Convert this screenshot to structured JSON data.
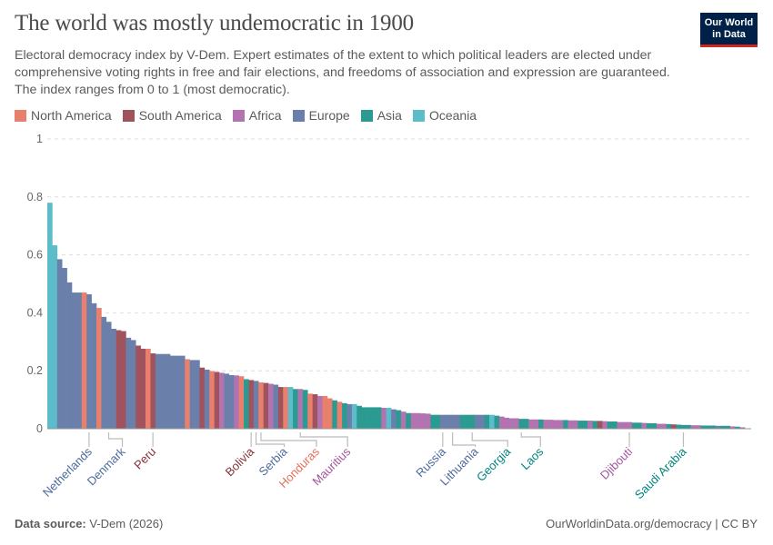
{
  "title": "The world was mostly undemocratic in 1900",
  "subtitle": "Electoral democracy index by V-Dem. Expert estimates of the extent to which political leaders are elected under comprehensive voting rights in free and fair elections, and freedoms of association and expression are guaranteed. The index ranges from 0 to 1 (most democratic).",
  "logo": {
    "line1": "Our World",
    "line2": "in Data"
  },
  "footer": {
    "source_label": "Data source:",
    "source": "V-Dem (2026)",
    "url": "OurWorldinData.org/democracy | CC BY"
  },
  "colors": {
    "North America": {
      "bar": "#e9806d",
      "text": "#e56e5a"
    },
    "South America": {
      "bar": "#a0525d",
      "text": "#883039"
    },
    "Africa": {
      "bar": "#b273b0",
      "text": "#a2559c"
    },
    "Europe": {
      "bar": "#6a80ab",
      "text": "#4c6a9c"
    },
    "Asia": {
      "bar": "#2b9a91",
      "text": "#00847e"
    },
    "Oceania": {
      "bar": "#5cbcc9",
      "text": "#38aaba"
    }
  },
  "chart_data": {
    "type": "bar",
    "title": "The world was mostly undemocratic in 1900",
    "xlabel": "",
    "ylabel": "",
    "ylim": [
      0,
      1
    ],
    "yticks": [
      "0",
      "0.2",
      "0.4",
      "0.6",
      "0.8",
      "1"
    ],
    "grid": true,
    "legend": [
      "North America",
      "South America",
      "Africa",
      "Europe",
      "Asia",
      "Oceania"
    ],
    "legend_placement": "top-left",
    "regions": [
      "Oceania",
      "Oceania",
      "Europe",
      "Europe",
      "Europe",
      "Europe",
      "Europe",
      "North America",
      "Europe",
      "Europe",
      "North America",
      "Europe",
      "Europe",
      "Europe",
      "South America",
      "South America",
      "Europe",
      "Europe",
      "South America",
      "South America",
      "North America",
      "South America",
      "Europe",
      "Europe",
      "Europe",
      "Europe",
      "Europe",
      "Europe",
      "North America",
      "Europe",
      "Europe",
      "South America",
      "Europe",
      "North America",
      "South America",
      "Africa",
      "Europe",
      "Europe",
      "Africa",
      "North America",
      "Asia",
      "South America",
      "Europe",
      "North America",
      "South America",
      "Africa",
      "Europe",
      "South America",
      "North America",
      "Oceania",
      "Asia",
      "Africa",
      "Asia",
      "North America",
      "South America",
      "Africa",
      "North America",
      "North America",
      "Asia",
      "North America",
      "Asia",
      "Europe",
      "Oceania",
      "Asia",
      "Asia",
      "Asia",
      "Asia",
      "Asia",
      "Africa",
      "Oceania",
      "Europe",
      "Asia",
      "Africa",
      "Asia",
      "Africa",
      "Africa",
      "Africa",
      "Africa",
      "Asia",
      "Asia",
      "Europe",
      "Europe",
      "Europe",
      "Europe",
      "Asia",
      "Asia",
      "Asia",
      "Europe",
      "Europe",
      "Asia",
      "Oceania",
      "Asia",
      "Africa",
      "Africa",
      "Africa",
      "Africa",
      "Asia",
      "Asia",
      "Africa",
      "Africa",
      "Asia",
      "Africa",
      "Africa",
      "Africa",
      "Africa",
      "Asia",
      "Africa",
      "Africa",
      "Asia",
      "Asia",
      "Africa",
      "Asia",
      "South America",
      "Africa",
      "Asia",
      "Asia",
      "Africa",
      "Africa",
      "Africa",
      "Asia",
      "Asia",
      "Africa",
      "Asia",
      "Asia",
      "Africa",
      "Africa",
      "Asia",
      "South America",
      "Asia",
      "Asia",
      "Asia",
      "Africa",
      "Africa",
      "Asia",
      "Asia",
      "Asia",
      "Europe",
      "Asia",
      "Asia",
      "Africa",
      "Asia",
      "Africa"
    ],
    "values": [
      0.78,
      0.633,
      0.585,
      0.555,
      0.505,
      0.47,
      0.47,
      0.47,
      0.464,
      0.433,
      0.417,
      0.386,
      0.369,
      0.345,
      0.34,
      0.337,
      0.314,
      0.306,
      0.287,
      0.276,
      0.276,
      0.26,
      0.258,
      0.258,
      0.258,
      0.252,
      0.252,
      0.252,
      0.24,
      0.237,
      0.237,
      0.211,
      0.204,
      0.199,
      0.196,
      0.193,
      0.19,
      0.185,
      0.184,
      0.181,
      0.171,
      0.168,
      0.165,
      0.16,
      0.158,
      0.155,
      0.152,
      0.144,
      0.144,
      0.144,
      0.137,
      0.137,
      0.134,
      0.121,
      0.119,
      0.113,
      0.113,
      0.105,
      0.098,
      0.093,
      0.088,
      0.085,
      0.085,
      0.079,
      0.074,
      0.074,
      0.074,
      0.074,
      0.072,
      0.072,
      0.067,
      0.064,
      0.059,
      0.054,
      0.054,
      0.054,
      0.053,
      0.052,
      0.048,
      0.048,
      0.048,
      0.048,
      0.048,
      0.048,
      0.048,
      0.048,
      0.048,
      0.048,
      0.048,
      0.048,
      0.048,
      0.045,
      0.042,
      0.038,
      0.036,
      0.036,
      0.034,
      0.034,
      0.032,
      0.032,
      0.032,
      0.031,
      0.031,
      0.03,
      0.03,
      0.03,
      0.029,
      0.029,
      0.028,
      0.028,
      0.028,
      0.027,
      0.027,
      0.026,
      0.025,
      0.025,
      0.023,
      0.023,
      0.023,
      0.021,
      0.021,
      0.02,
      0.019,
      0.019,
      0.017,
      0.017,
      0.016,
      0.015,
      0.014,
      0.013,
      0.013,
      0.012,
      0.012,
      0.011,
      0.011,
      0.011,
      0.01,
      0.01,
      0.01,
      0.008,
      0.007,
      0.005
    ],
    "annotations": [
      {
        "country": "Netherlands",
        "region": "Europe",
        "rank": 9
      },
      {
        "country": "Denmark",
        "region": "Europe",
        "rank": 13
      },
      {
        "country": "Peru",
        "region": "South America",
        "rank": 22
      },
      {
        "country": "Bolivia",
        "region": "South America",
        "rank": 42
      },
      {
        "country": "Serbia",
        "region": "Europe",
        "rank": 43
      },
      {
        "country": "Honduras",
        "region": "North America",
        "rank": 44
      },
      {
        "country": "Mauritius",
        "region": "Africa",
        "rank": 52
      },
      {
        "country": "Russia",
        "region": "Europe",
        "rank": 81
      },
      {
        "country": "Lithuania",
        "region": "Europe",
        "rank": 83
      },
      {
        "country": "Georgia",
        "region": "Asia",
        "rank": 87
      },
      {
        "country": "Laos",
        "region": "Asia",
        "rank": 97
      },
      {
        "country": "Djibouti",
        "region": "Africa",
        "rank": 119
      },
      {
        "country": "Saudi Arabia",
        "region": "Asia",
        "rank": 130
      }
    ]
  }
}
